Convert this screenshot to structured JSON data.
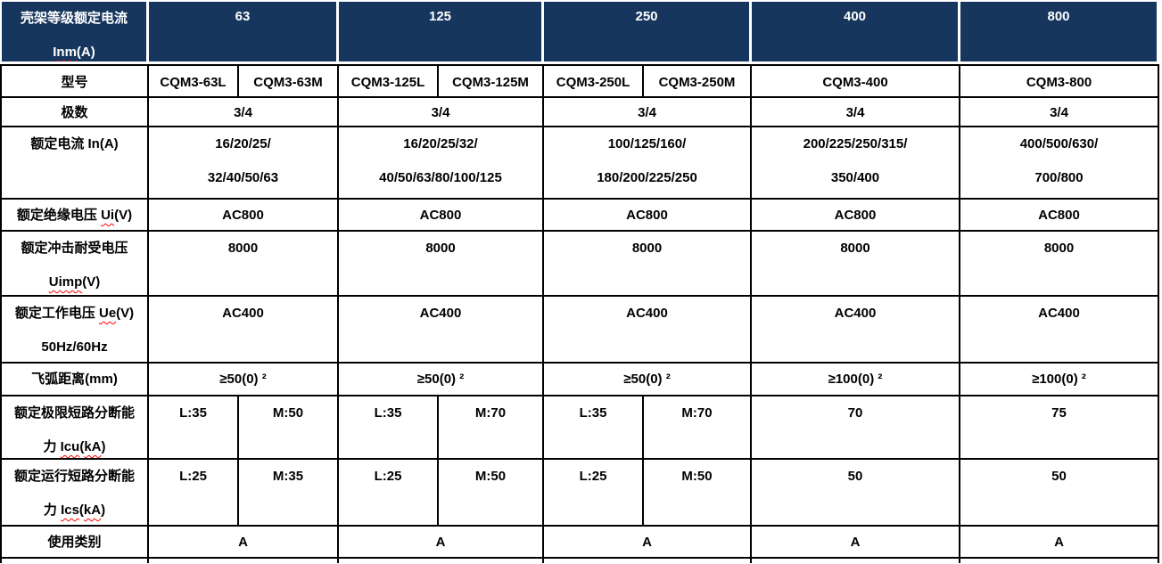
{
  "colors": {
    "header_bg": "#17365D",
    "header_text": "#FFFFFF",
    "body_text": "#000000",
    "grid_border": "#000000",
    "header_rule": "#FFFFFF",
    "squiggle": "#FF0000"
  },
  "table": {
    "header": {
      "label_lines": [
        [
          {
            "t": "壳架等级额定电流"
          }
        ],
        [
          {
            "t": "Inm",
            "sq": true
          },
          {
            "t": "(A)"
          }
        ]
      ],
      "groups": [
        {
          "label": "63",
          "span": 2
        },
        {
          "label": "125",
          "span": 2
        },
        {
          "label": "250",
          "span": 2
        },
        {
          "label": "400",
          "span": 1
        },
        {
          "label": "800",
          "span": 1
        }
      ]
    },
    "rows": [
      {
        "name": "model",
        "label_lines": [
          "型号"
        ],
        "cells": [
          {
            "span": 1,
            "lines": [
              "CQM3-63L"
            ]
          },
          {
            "span": 1,
            "lines": [
              "CQM3-63M"
            ]
          },
          {
            "span": 1,
            "lines": [
              "CQM3-125L"
            ]
          },
          {
            "span": 1,
            "lines": [
              "CQM3-125M"
            ]
          },
          {
            "span": 1,
            "lines": [
              "CQM3-250L"
            ]
          },
          {
            "span": 1,
            "lines": [
              "CQM3-250M"
            ]
          },
          {
            "span": 1,
            "lines": [
              "CQM3-400"
            ]
          },
          {
            "span": 1,
            "lines": [
              "CQM3-800"
            ]
          }
        ]
      },
      {
        "name": "poles",
        "label_lines": [
          "极数"
        ],
        "cells": [
          {
            "span": 2,
            "lines": [
              "3/4"
            ]
          },
          {
            "span": 2,
            "lines": [
              "3/4"
            ]
          },
          {
            "span": 2,
            "lines": [
              "3/4"
            ]
          },
          {
            "span": 1,
            "lines": [
              "3/4"
            ]
          },
          {
            "span": 1,
            "lines": [
              "3/4"
            ]
          }
        ]
      },
      {
        "name": "current",
        "label_lines": [
          "额定电流 In(A)"
        ],
        "cells": [
          {
            "span": 2,
            "lines": [
              "16/20/25/",
              "32/40/50/63"
            ]
          },
          {
            "span": 2,
            "lines": [
              "16/20/25/32/",
              "40/50/63/80/100/125"
            ]
          },
          {
            "span": 2,
            "lines": [
              "100/125/160/",
              "180/200/225/250"
            ]
          },
          {
            "span": 1,
            "lines": [
              "200/225/250/315/",
              "350/400"
            ]
          },
          {
            "span": 1,
            "lines": [
              "400/500/630/",
              "700/800"
            ]
          }
        ]
      },
      {
        "name": "ui",
        "label_lines": [
          [
            {
              "t": "额定绝缘电压 "
            },
            {
              "t": "Ui",
              "sq": true
            },
            {
              "t": "(V)"
            }
          ]
        ],
        "cells": [
          {
            "span": 2,
            "lines": [
              "AC800"
            ]
          },
          {
            "span": 2,
            "lines": [
              "AC800"
            ]
          },
          {
            "span": 2,
            "lines": [
              "AC800"
            ]
          },
          {
            "span": 1,
            "lines": [
              "AC800"
            ]
          },
          {
            "span": 1,
            "lines": [
              "AC800"
            ]
          }
        ]
      },
      {
        "name": "uimp",
        "label_lines": [
          "额定冲击耐受电压",
          [
            {
              "t": "Uimp",
              "sq": true
            },
            {
              "t": "(V)"
            }
          ]
        ],
        "cells": [
          {
            "span": 2,
            "lines": [
              "8000"
            ]
          },
          {
            "span": 2,
            "lines": [
              "8000"
            ]
          },
          {
            "span": 2,
            "lines": [
              "8000"
            ]
          },
          {
            "span": 1,
            "lines": [
              "8000"
            ]
          },
          {
            "span": 1,
            "lines": [
              "8000"
            ]
          }
        ]
      },
      {
        "name": "ue",
        "label_lines": [
          [
            {
              "t": "额定工作电压 "
            },
            {
              "t": "Ue",
              "sq": true
            },
            {
              "t": "(V)"
            }
          ],
          "50Hz/60Hz"
        ],
        "cells": [
          {
            "span": 2,
            "lines": [
              "AC400"
            ]
          },
          {
            "span": 2,
            "lines": [
              "AC400"
            ]
          },
          {
            "span": 2,
            "lines": [
              "AC400"
            ]
          },
          {
            "span": 1,
            "lines": [
              "AC400"
            ]
          },
          {
            "span": 1,
            "lines": [
              "AC400"
            ]
          }
        ]
      },
      {
        "name": "arc",
        "label_lines": [
          "飞弧距离(mm)"
        ],
        "cells": [
          {
            "span": 2,
            "lines": [
              "≥50(0) ²"
            ]
          },
          {
            "span": 2,
            "lines": [
              "≥50(0) ²"
            ]
          },
          {
            "span": 2,
            "lines": [
              "≥50(0) ²"
            ]
          },
          {
            "span": 1,
            "lines": [
              "≥100(0) ²"
            ]
          },
          {
            "span": 1,
            "lines": [
              "≥100(0) ²"
            ]
          }
        ]
      },
      {
        "name": "icu",
        "label_lines": [
          "额定极限短路分断能",
          [
            {
              "t": "力 "
            },
            {
              "t": "Icu",
              "sq": true
            },
            {
              "t": "("
            },
            {
              "t": "kA",
              "sq": true
            },
            {
              "t": ")"
            }
          ]
        ],
        "cells": [
          {
            "span": 1,
            "lines": [
              "L:35"
            ]
          },
          {
            "span": 1,
            "lines": [
              "M:50"
            ]
          },
          {
            "span": 1,
            "lines": [
              "L:35"
            ]
          },
          {
            "span": 1,
            "lines": [
              "M:70"
            ]
          },
          {
            "span": 1,
            "lines": [
              "L:35"
            ]
          },
          {
            "span": 1,
            "lines": [
              "M:70"
            ]
          },
          {
            "span": 1,
            "lines": [
              "70"
            ]
          },
          {
            "span": 1,
            "lines": [
              "75"
            ]
          }
        ]
      },
      {
        "name": "ics",
        "label_lines": [
          "额定运行短路分断能",
          [
            {
              "t": "力 "
            },
            {
              "t": "Ics",
              "sq": true
            },
            {
              "t": "("
            },
            {
              "t": "kA",
              "sq": true
            },
            {
              "t": ")"
            }
          ]
        ],
        "cells": [
          {
            "span": 1,
            "lines": [
              "L:25"
            ]
          },
          {
            "span": 1,
            "lines": [
              "M:35"
            ]
          },
          {
            "span": 1,
            "lines": [
              "L:25"
            ]
          },
          {
            "span": 1,
            "lines": [
              "M:50"
            ]
          },
          {
            "span": 1,
            "lines": [
              "L:25"
            ]
          },
          {
            "span": 1,
            "lines": [
              "M:50"
            ]
          },
          {
            "span": 1,
            "lines": [
              "50"
            ]
          },
          {
            "span": 1,
            "lines": [
              "50"
            ]
          }
        ]
      },
      {
        "name": "category",
        "label_lines": [
          "使用类别"
        ],
        "cells": [
          {
            "span": 2,
            "lines": [
              "A"
            ]
          },
          {
            "span": 2,
            "lines": [
              "A"
            ]
          },
          {
            "span": 2,
            "lines": [
              "A"
            ]
          },
          {
            "span": 1,
            "lines": [
              "A"
            ]
          },
          {
            "span": 1,
            "lines": [
              "A"
            ]
          }
        ]
      },
      {
        "name": "partial",
        "label_lines": [],
        "cells": [
          {
            "span": 2,
            "lines": []
          },
          {
            "span": 2,
            "lines": []
          },
          {
            "span": 2,
            "lines": []
          },
          {
            "span": 1,
            "lines": []
          },
          {
            "span": 1,
            "lines": []
          }
        ]
      }
    ]
  }
}
